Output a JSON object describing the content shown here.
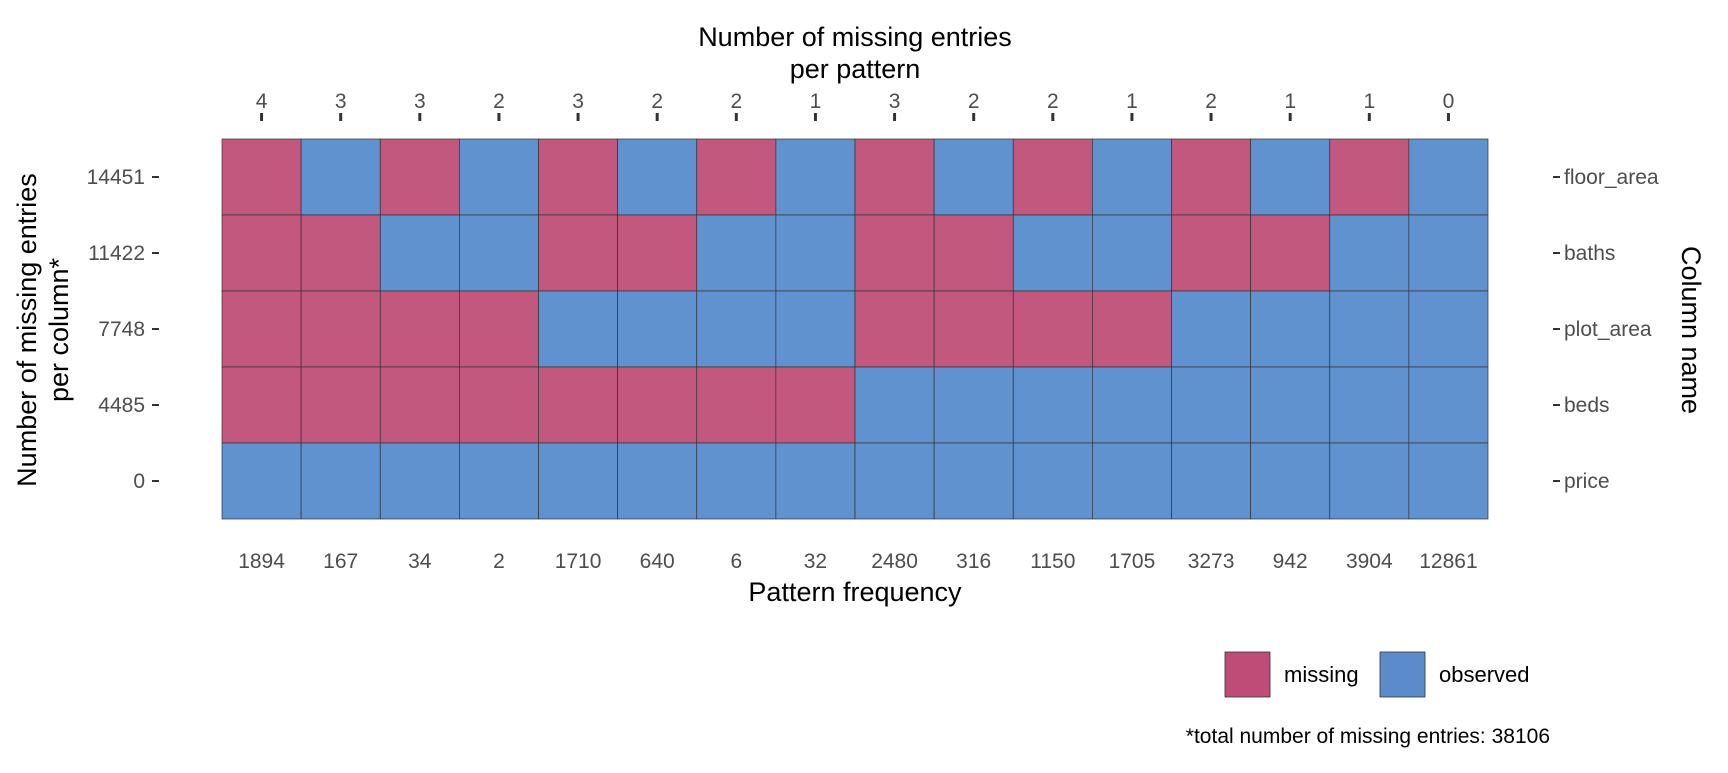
{
  "colors": {
    "missing": "#c2587e",
    "observed": "#6192d0",
    "missing_legend": "#bf4b77",
    "observed_legend": "#5b8bcb",
    "cell_border": "#333333",
    "tick_mark": "#333333"
  },
  "chart_data": {
    "type": "heatmap",
    "top_axis_title": [
      "Number of missing entries",
      "per pattern"
    ],
    "bottom_axis_title": "Pattern frequency",
    "left_axis_title": [
      "Number of missing entries",
      "per column*"
    ],
    "right_axis_title": "Column name",
    "pattern_frequencies": [
      "1894",
      "167",
      "34",
      "2",
      "1710",
      "640",
      "6",
      "32",
      "2480",
      "316",
      "1150",
      "1705",
      "3273",
      "942",
      "3904",
      "12861"
    ],
    "missing_per_pattern": [
      "4",
      "3",
      "3",
      "2",
      "3",
      "2",
      "2",
      "1",
      "3",
      "2",
      "2",
      "1",
      "2",
      "1",
      "1",
      "0"
    ],
    "columns": [
      "floor_area",
      "baths",
      "plot_area",
      "beds",
      "price"
    ],
    "missing_per_column": [
      "14451",
      "11422",
      "7748",
      "4485",
      "0"
    ],
    "matrix": [
      [
        1,
        0,
        1,
        0,
        1,
        0,
        1,
        0,
        1,
        0,
        1,
        0,
        1,
        0,
        1,
        0
      ],
      [
        1,
        1,
        0,
        0,
        1,
        1,
        0,
        0,
        1,
        1,
        0,
        0,
        1,
        1,
        0,
        0
      ],
      [
        1,
        1,
        1,
        1,
        0,
        0,
        0,
        0,
        1,
        1,
        1,
        1,
        0,
        0,
        0,
        0
      ],
      [
        1,
        1,
        1,
        1,
        1,
        1,
        1,
        1,
        0,
        0,
        0,
        0,
        0,
        0,
        0,
        0
      ],
      [
        0,
        0,
        0,
        0,
        0,
        0,
        0,
        0,
        0,
        0,
        0,
        0,
        0,
        0,
        0,
        0
      ]
    ],
    "legend": {
      "position": "bottom-right",
      "items": [
        {
          "label": "missing",
          "value": 1
        },
        {
          "label": "observed",
          "value": 0
        }
      ]
    },
    "caption": "*total number of missing entries: 38106",
    "grid": false
  }
}
